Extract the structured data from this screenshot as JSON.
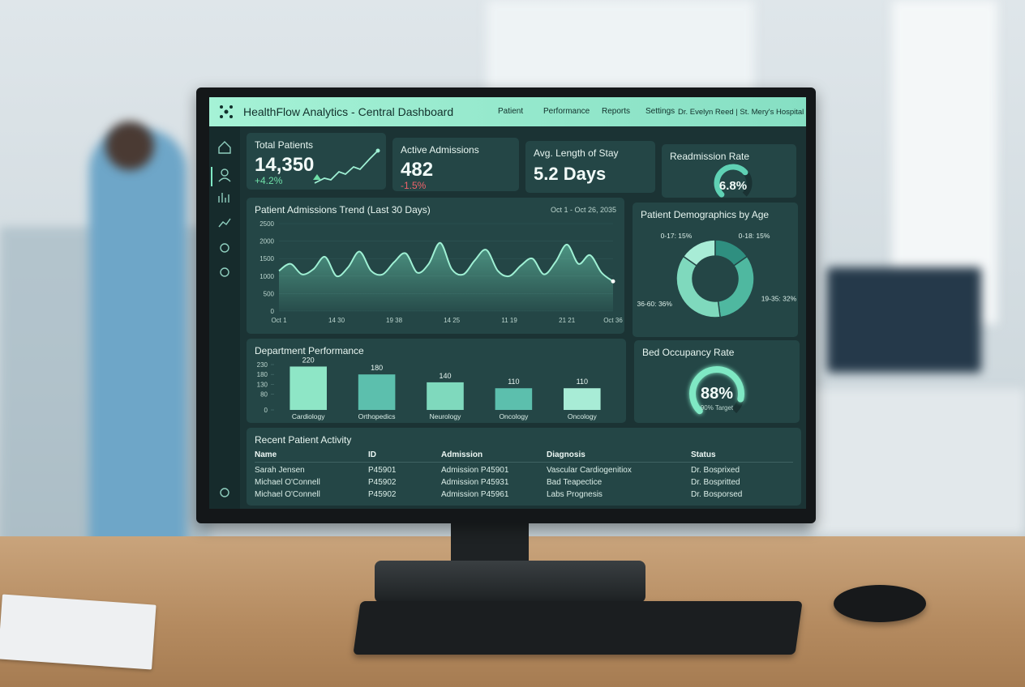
{
  "header": {
    "title": "HealthFlow Analytics - Central Dashboard",
    "nav": [
      "Patient",
      "Performance",
      "Reports",
      "Settings"
    ],
    "user": "Dr. Evelyn Reed | St. Mery's Hospital"
  },
  "kpis": [
    {
      "title": "Total Patients",
      "value": "14,350",
      "change": "+4.2%"
    },
    {
      "title": "Active Admissions",
      "value": "482",
      "change": "-1.5%"
    },
    {
      "title": "Avg. Length of Stay",
      "value": "5.2 Days"
    }
  ],
  "chart_data": [
    {
      "type": "line",
      "title": "Patient Admissions Trend (Last 30 Days)",
      "subtitle": "Oct 1 - Oct 26, 2035",
      "categories": [
        "Oct 1",
        null,
        null,
        null,
        null,
        "14 30",
        null,
        null,
        null,
        null,
        "19 38",
        null,
        null,
        null,
        null,
        "14 25",
        null,
        null,
        null,
        null,
        "11 19",
        null,
        null,
        null,
        null,
        "21 21",
        null,
        null,
        null,
        "Oct 36"
      ],
      "values": [
        1150,
        1350,
        1050,
        1200,
        1550,
        1000,
        1250,
        1700,
        1150,
        1050,
        1400,
        1650,
        1100,
        1350,
        1950,
        1200,
        1050,
        1450,
        1750,
        1150,
        1000,
        1300,
        1500,
        1050,
        1400,
        1900,
        1350,
        1600,
        1100,
        850
      ],
      "color": "#9ff0d4",
      "ylim": [
        0,
        2500
      ],
      "yticks": [
        0,
        500,
        1000,
        1500,
        2000,
        2500
      ],
      "grid": true
    },
    {
      "type": "pie",
      "title": "Patient Demographics by Age",
      "categories": [
        "0-17: 15%",
        "0-18: 15%",
        "19-35: 32%",
        "36-60: 36%"
      ],
      "values": [
        15,
        15,
        32,
        36
      ],
      "colors": [
        "#a8ecd6",
        "#2f8f80",
        "#4fb8a0",
        "#7fd9bd"
      ]
    },
    {
      "type": "bar",
      "title": "Department Performance",
      "categories": [
        "Cardiology",
        "Orthopedics",
        "Neurology",
        "Oncology",
        "Oncology"
      ],
      "values": [
        220,
        180,
        140,
        110,
        110
      ],
      "colors": [
        "#8ee6c6",
        "#5cbfad",
        "#7fd9bd",
        "#5cbfad",
        "#a8ecd6"
      ],
      "ylim": [
        0,
        230
      ],
      "yticks": [
        0,
        80,
        130,
        180,
        230
      ]
    },
    {
      "type": "gauge",
      "title": "Readmission Rate",
      "value": 6.8,
      "value_label": "6.8%",
      "ylim": [
        0,
        10
      ],
      "color": "#5fd1b4"
    },
    {
      "type": "gauge",
      "title": "Bed Occupancy Rate",
      "value": 88,
      "value_label": "88%",
      "target_label": "90% Target",
      "ylim": [
        0,
        100
      ],
      "color": "#7fe8c4"
    }
  ],
  "table": {
    "title": "Recent Patient Activity",
    "columns": [
      "Name",
      "ID",
      "Admission",
      "Diagnosis",
      "Status"
    ],
    "rows": [
      [
        "Sarah Jensen",
        "P45901",
        "Admission P45901",
        "Vascular Cardiogenitiox",
        "Dr. Bosprixed"
      ],
      [
        "Michael O'Connell",
        "P45902",
        "Admission P45931",
        "Bad Teapectice",
        "Dr. Bospritted"
      ],
      [
        "Michael O'Connell",
        "P45902",
        "Admission P45961",
        "Labs Prognesis",
        "Dr. Bosporsed"
      ]
    ]
  }
}
